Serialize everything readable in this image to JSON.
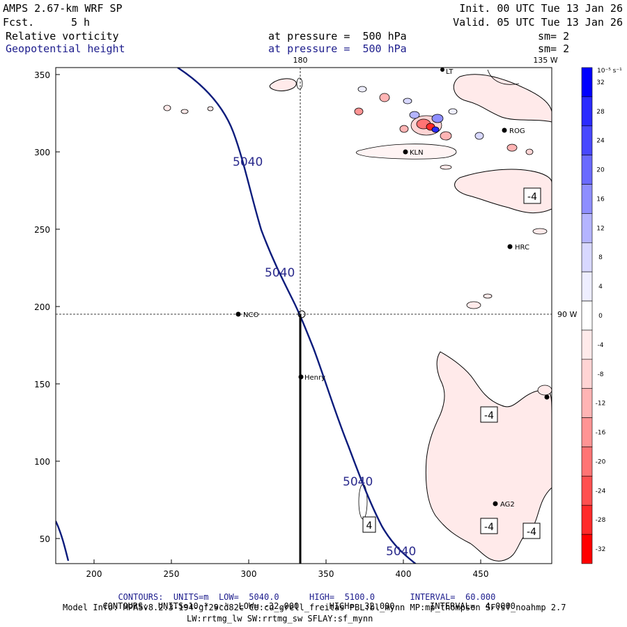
{
  "header": {
    "model": "AMPS 2.67-km WRF SP",
    "fcst_label": "Fcst.",
    "fcst_value": "5 h",
    "init": "Init. 00 UTC Tue 13 Jan 26",
    "valid": "Valid. 05 UTC Tue 13 Jan 26",
    "field1_name": "Relative vorticity",
    "field1_level": "at pressure =  500 hPa",
    "field1_sm": "sm= 2",
    "field2_name": "Geopotential height",
    "field2_level": "at pressure =  500 hPa",
    "field2_sm": "sm= 2"
  },
  "map": {
    "x_ticks": [
      "200",
      "250",
      "300",
      "350",
      "400",
      "450"
    ],
    "y_ticks": [
      "350",
      "300",
      "250",
      "200",
      "150",
      "100",
      "50"
    ],
    "meridian_labels": [
      "180",
      "135 W",
      "90 W"
    ],
    "stations": [
      {
        "code": "NCO"
      },
      {
        "code": "Henry"
      },
      {
        "code": "KLN"
      },
      {
        "code": "ROG"
      },
      {
        "code": "HRC"
      },
      {
        "code": "AG2"
      },
      {
        "code": "LT"
      }
    ],
    "height_contour_labels": [
      "5040",
      "5040",
      "5040",
      "5040"
    ],
    "vorticity_labels": [
      "-4",
      "-4",
      "-4",
      "-4",
      "4"
    ]
  },
  "colorbar": {
    "unit": "10⁻⁵ s⁻¹",
    "ticks": [
      "32",
      "28",
      "24",
      "20",
      "16",
      "12",
      "8",
      "4",
      "0",
      "-4",
      "-8",
      "-12",
      "-16",
      "-20",
      "-24",
      "-28",
      "-32"
    ],
    "colors": [
      "#0000ff",
      "#2a2aff",
      "#4848ff",
      "#6a6aff",
      "#8e8eff",
      "#b4b4ff",
      "#d8d8ff",
      "#eeeeff",
      "#ffffff",
      "#ffeaea",
      "#ffd4d4",
      "#ffb4b4",
      "#ff9494",
      "#ff7474",
      "#ff5050",
      "#ff2a2a",
      "#ff0000"
    ]
  },
  "footer": {
    "line1_a": "CONTOURS:  UNITS=m  LOW=  5040.0",
    "line1_b": "HIGH=  5100.0",
    "line1_c": "INTERVAL=  60.000",
    "line2_a": "CONTOURS:  UNITS=10⁻⁵ s⁻¹  LOW= -32.000",
    "line2_b": "HIGH=  32.000",
    "line2_c": "INTERVAL=  4.0000",
    "line3": "Model Info: MPASv8.2.3-194-gf29cd82c CU:cu_grell_freitas PBL:bl_mynn MP:mp_thompson SF:sf_noahmp 2.7",
    "line4": "LW:rrtmg_lw SW:rrtmg_sw SFLAY:sf_mynn"
  }
}
